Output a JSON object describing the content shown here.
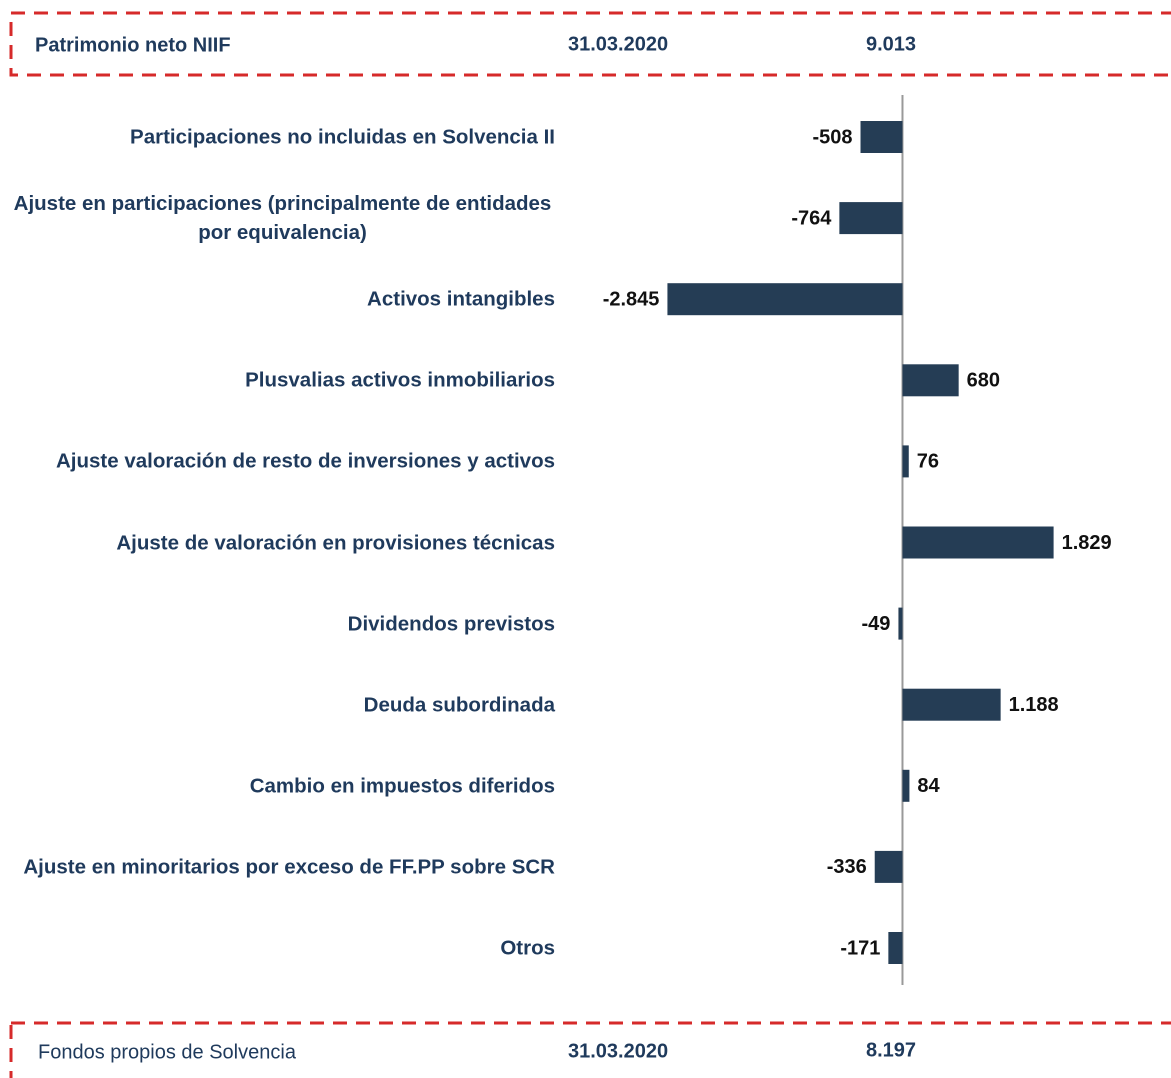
{
  "header": {
    "label": "Patrimonio neto NIIF",
    "date": "31.03.2020",
    "value": "9.013"
  },
  "chart_data": {
    "type": "bar",
    "orientation": "horizontal",
    "categories": [
      "Participaciones no incluidas en Solvencia II",
      "Ajuste en participaciones (principalmente de entidades por equivalencia)",
      "Activos intangibles",
      "Plusvalias activos inmobiliarios",
      "Ajuste valoración de resto de inversiones y activos",
      "Ajuste de valoración en provisiones técnicas",
      "Dividendos previstos",
      "Deuda subordinada",
      "Cambio en impuestos diferidos",
      "Ajuste en minoritarios por exceso de FF.PP sobre SCR",
      "Otros"
    ],
    "values": [
      -508,
      -764,
      -2845,
      680,
      76,
      1829,
      -49,
      1188,
      84,
      -336,
      -171
    ],
    "value_labels": [
      "-508",
      "-764",
      "-2.845",
      "680",
      "76",
      "1.829",
      "-49",
      "1.188",
      "84",
      "-336",
      "-171"
    ],
    "color": "#253d55",
    "xlim": [
      -4000,
      3250
    ]
  },
  "footer": {
    "label": "Fondos propios de Solvencia",
    "date": "31.03.2020",
    "value": "8.197"
  }
}
